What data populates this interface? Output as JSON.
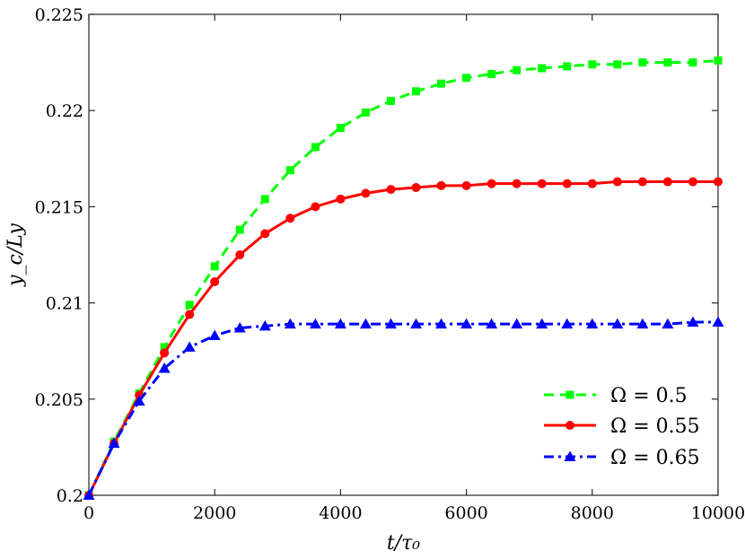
{
  "chart_data": {
    "type": "line",
    "xlabel": "t/τ₀",
    "ylabel": "y_c/Ly",
    "xlim": [
      0,
      10000
    ],
    "ylim": [
      0.2,
      0.225
    ],
    "x_ticks": [
      0,
      2000,
      4000,
      6000,
      8000,
      10000
    ],
    "x_tick_labels": [
      "0",
      "2000",
      "4000",
      "6000",
      "8000",
      "10000"
    ],
    "y_ticks": [
      0.2,
      0.205,
      0.21,
      0.215,
      0.22,
      0.225
    ],
    "y_tick_labels": [
      "0.2",
      "0.205",
      "0.21",
      "0.215",
      "0.22",
      "0.225"
    ],
    "grid": false,
    "legend_position": "bottom-right",
    "x": [
      0,
      400,
      800,
      1200,
      1600,
      2000,
      2400,
      2800,
      3200,
      3600,
      4000,
      4400,
      4800,
      5200,
      5600,
      6000,
      6400,
      6800,
      7200,
      7600,
      8000,
      8400,
      8800,
      9200,
      9600,
      10000
    ],
    "series": [
      {
        "name": "Ω = 0.5",
        "color": "#00ff00",
        "line_style": "dashed",
        "marker": "square",
        "values": [
          0.2,
          0.2028,
          0.2053,
          0.2077,
          0.2099,
          0.2119,
          0.2138,
          0.2154,
          0.2169,
          0.2181,
          0.2191,
          0.2199,
          0.2205,
          0.221,
          0.2214,
          0.2217,
          0.2219,
          0.2221,
          0.2222,
          0.2223,
          0.2224,
          0.2224,
          0.2225,
          0.2225,
          0.2225,
          0.2226
        ]
      },
      {
        "name": "Ω = 0.55",
        "color": "#ff0000",
        "line_style": "solid",
        "marker": "circle",
        "values": [
          0.2,
          0.2027,
          0.2052,
          0.2074,
          0.2094,
          0.2111,
          0.2125,
          0.2136,
          0.2144,
          0.215,
          0.2154,
          0.2157,
          0.2159,
          0.216,
          0.2161,
          0.2161,
          0.2162,
          0.2162,
          0.2162,
          0.2162,
          0.2162,
          0.2163,
          0.2163,
          0.2163,
          0.2163,
          0.2163
        ]
      },
      {
        "name": "Ω = 0.65",
        "color": "#0000ff",
        "line_style": "dashdot",
        "marker": "triangle",
        "values": [
          0.2,
          0.2027,
          0.2049,
          0.2066,
          0.2077,
          0.2083,
          0.2087,
          0.2088,
          0.2089,
          0.2089,
          0.2089,
          0.2089,
          0.2089,
          0.2089,
          0.2089,
          0.2089,
          0.2089,
          0.2089,
          0.2089,
          0.2089,
          0.2089,
          0.2089,
          0.2089,
          0.2089,
          0.209,
          0.209
        ]
      }
    ]
  }
}
